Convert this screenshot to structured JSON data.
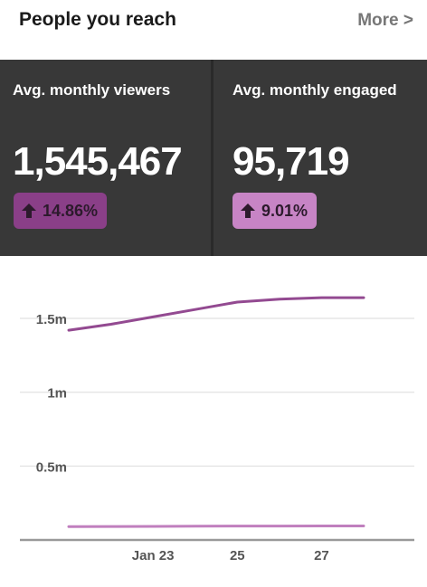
{
  "header": {
    "title": "People you reach",
    "more_label": "More >"
  },
  "stats": [
    {
      "label": "Avg. monthly viewers",
      "value": "1,545,467",
      "change": "14.86%",
      "direction": "up",
      "badge_color": "#8a3f88"
    },
    {
      "label": "Avg. monthly engaged",
      "value": "95,719",
      "change": "9.01%",
      "direction": "up",
      "badge_color": "#c784c5"
    }
  ],
  "colors": {
    "panel_bg": "#383838",
    "series_viewers": "#934a91",
    "series_engaged": "#c07fbe"
  },
  "icons": {
    "change": "arrow-up-icon"
  },
  "chart_data": {
    "type": "line",
    "x": [
      "Jan 21",
      "Jan 22",
      "Jan 23",
      "Jan 24",
      "Jan 25",
      "Jan 26",
      "Jan 27",
      "Jan 28"
    ],
    "x_tick_labels": [
      "Jan 23",
      "25",
      "27"
    ],
    "x_tick_positions": [
      "Jan 23",
      "Jan 25",
      "Jan 27"
    ],
    "y_tick_labels": [
      "1.5m",
      "1m",
      "0.5m"
    ],
    "y_tick_values": [
      1500000,
      1000000,
      500000
    ],
    "ylim": [
      0,
      1800000
    ],
    "grid": true,
    "series": [
      {
        "values": [
          1420000,
          1460000,
          1510000,
          1560000,
          1610000,
          1630000,
          1640000,
          1640000
        ],
        "color": "#934a91"
      },
      {
        "values": [
          90000,
          91000,
          92000,
          93000,
          94000,
          94000,
          95000,
          95000
        ],
        "color": "#c07fbe"
      }
    ]
  }
}
